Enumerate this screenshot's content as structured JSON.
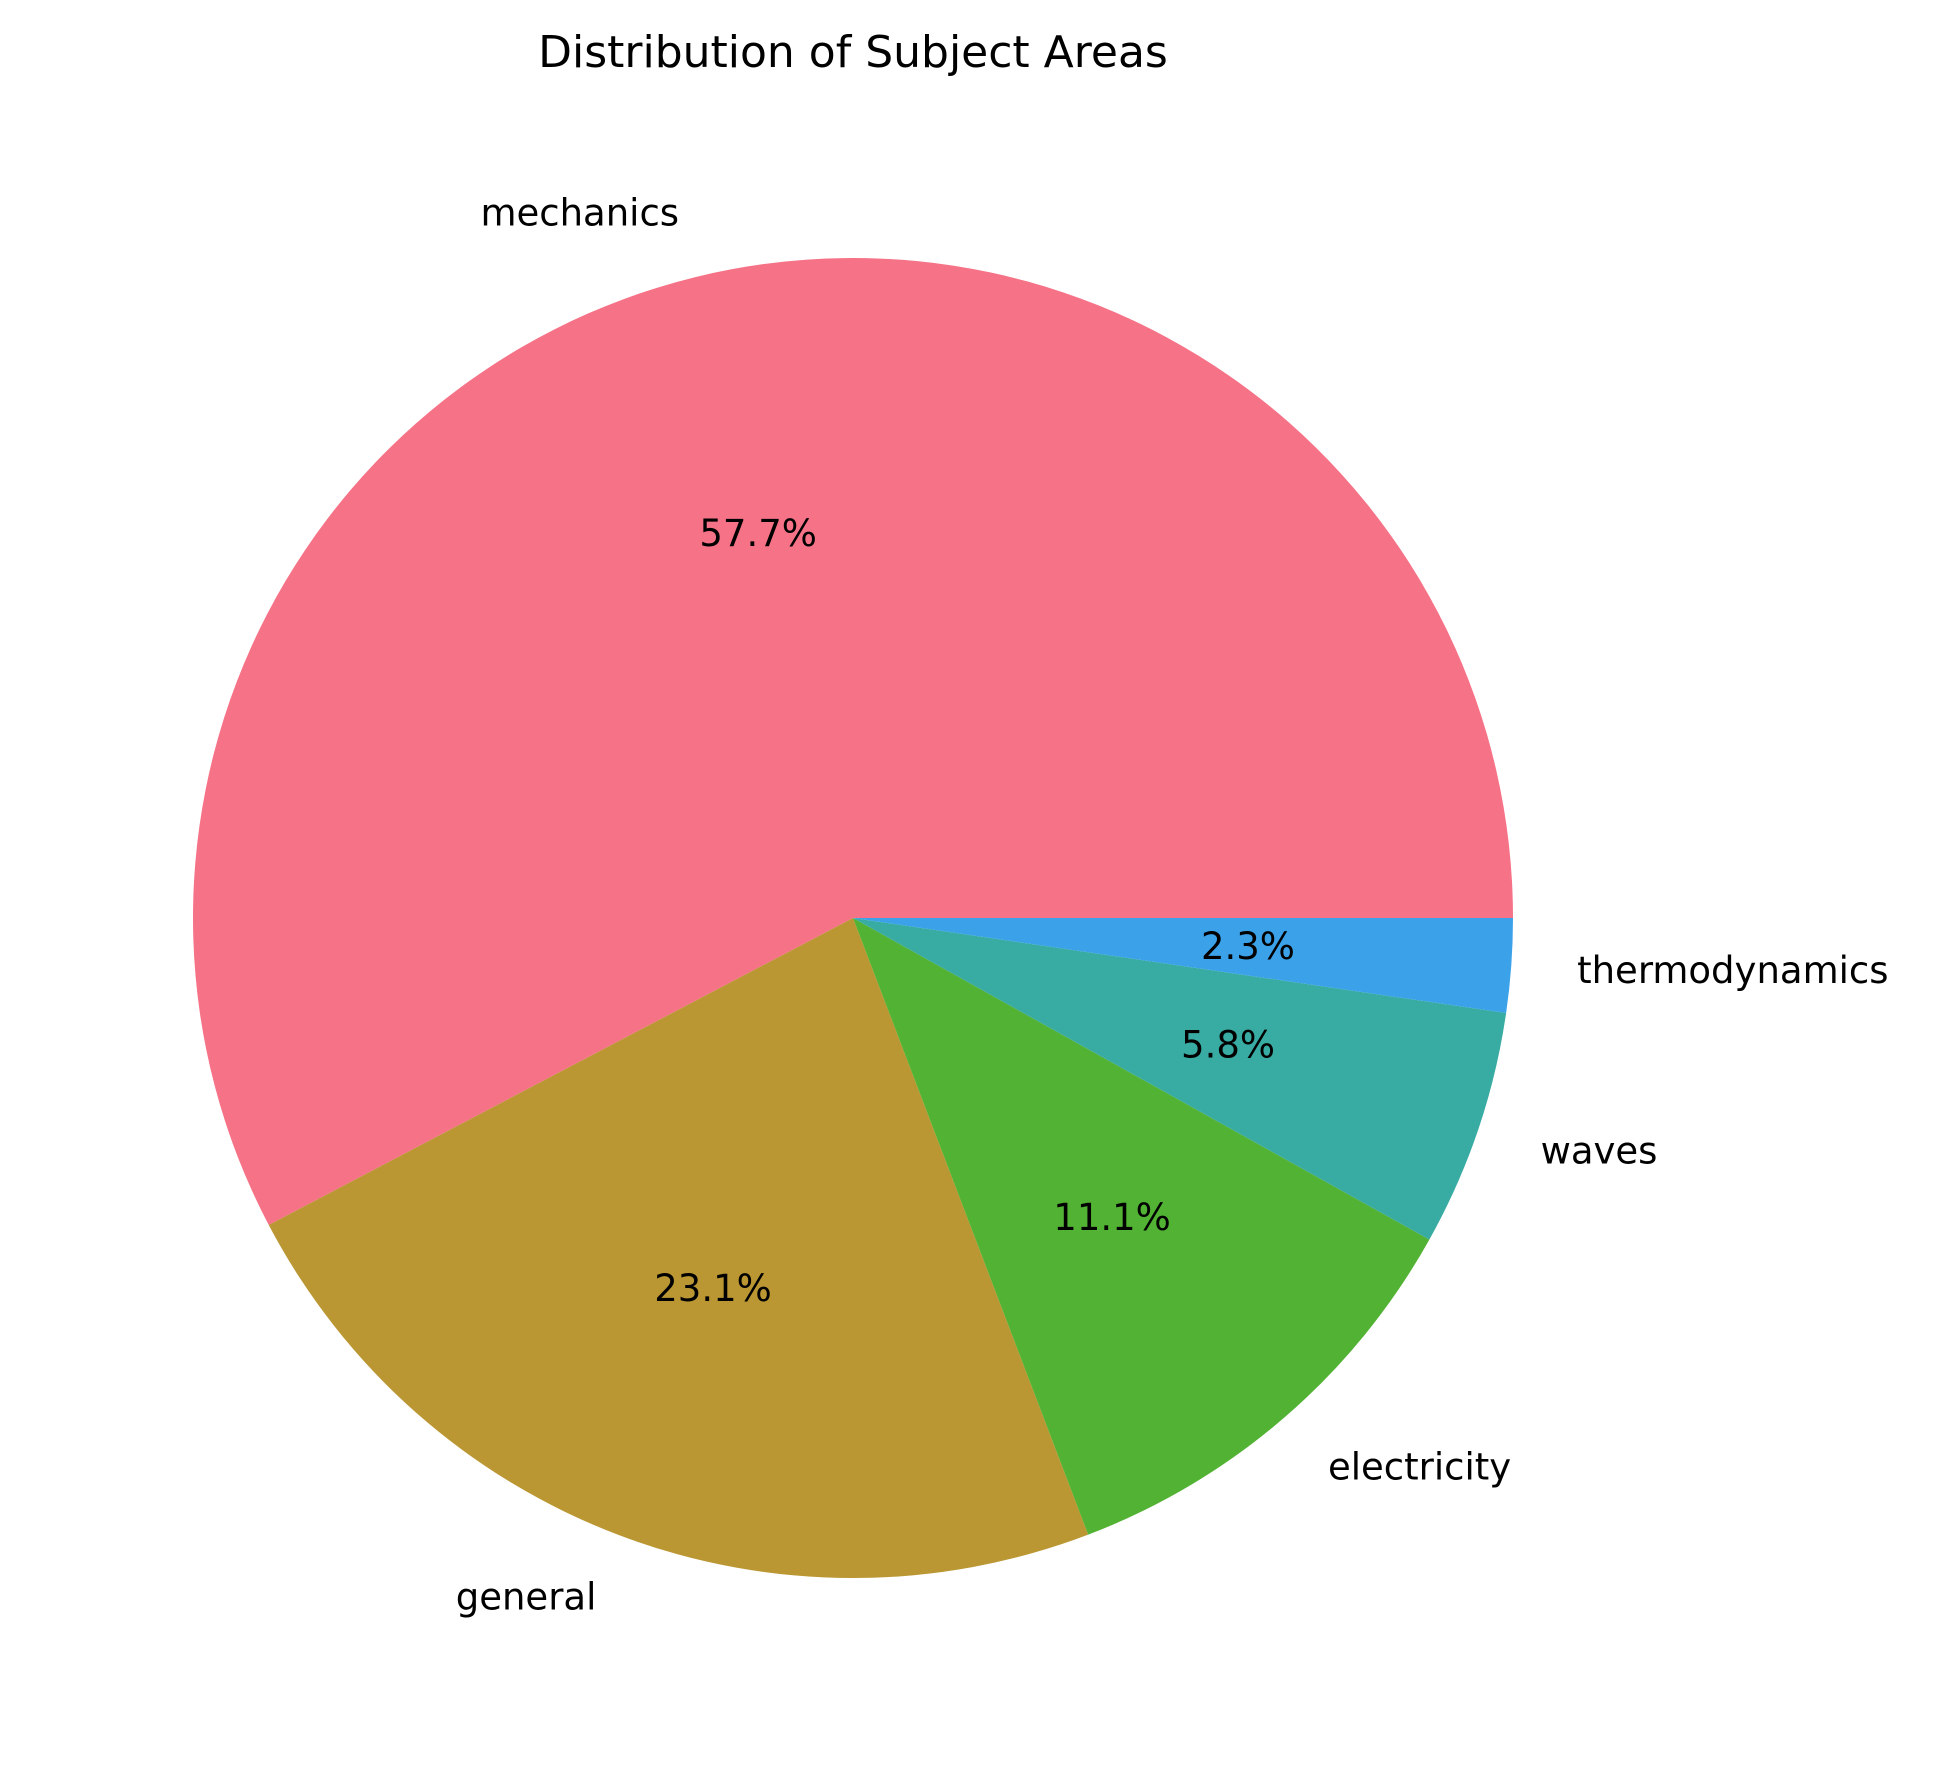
{
  "chart_data": {
    "type": "pie",
    "title": "Distribution of Subject Areas",
    "slices": [
      {
        "label": "mechanics",
        "percent": 57.7,
        "pct_text": "57.7%",
        "color": "#f67287"
      },
      {
        "label": "general",
        "percent": 23.1,
        "pct_text": "23.1%",
        "color": "#ba9733"
      },
      {
        "label": "electricity",
        "percent": 11.1,
        "pct_text": "11.1%",
        "color": "#52b233"
      },
      {
        "label": "waves",
        "percent": 5.8,
        "pct_text": "5.8%",
        "color": "#38aba3"
      },
      {
        "label": "thermodynamics",
        "percent": 2.3,
        "pct_text": "2.3%",
        "color": "#3ba2ea"
      }
    ],
    "start_angle_deg": 0,
    "direction": "counterclockwise"
  }
}
